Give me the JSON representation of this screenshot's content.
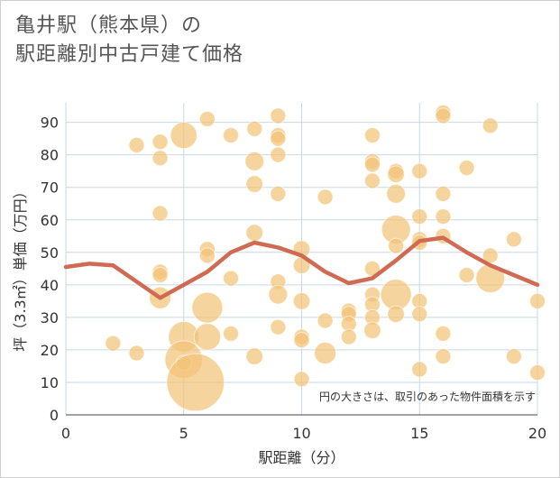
{
  "header": {
    "line1": "亀井駅（熊本県）の",
    "line2": "駅距離別中古戸建て価格"
  },
  "colors": {
    "bubble": "#f3c377",
    "line": "#d06a52",
    "grid": "#c9d7e6",
    "plot_bg": "#ffffff"
  },
  "chart_data": {
    "type": "scatter",
    "title": "亀井駅（熊本県）の駅距離別中古戸建て価格",
    "xlabel": "駅距離（分）",
    "ylabel": "坪（3.3㎡）単価（万円）",
    "xlim": [
      0,
      20
    ],
    "ylim": [
      0,
      96
    ],
    "xticks": [
      0,
      5,
      10,
      15,
      20
    ],
    "yticks": [
      0,
      10,
      20,
      30,
      40,
      50,
      60,
      70,
      80,
      90
    ],
    "annotation": "円の大きさは、取引のあった物件面積を示す",
    "points": [
      {
        "x": 2,
        "y": 22,
        "s": 1
      },
      {
        "x": 3,
        "y": 83,
        "s": 1
      },
      {
        "x": 3,
        "y": 19,
        "s": 1
      },
      {
        "x": 4,
        "y": 84,
        "s": 1
      },
      {
        "x": 4,
        "y": 79,
        "s": 1
      },
      {
        "x": 4,
        "y": 62,
        "s": 1
      },
      {
        "x": 4,
        "y": 44,
        "s": 1
      },
      {
        "x": 4,
        "y": 43,
        "s": 1
      },
      {
        "x": 4,
        "y": 36,
        "s": 2
      },
      {
        "x": 5,
        "y": 86,
        "s": 3
      },
      {
        "x": 5,
        "y": 24,
        "s": 4
      },
      {
        "x": 5,
        "y": 17,
        "s": 6
      },
      {
        "x": 5,
        "y": 16,
        "s": 1
      },
      {
        "x": 5.5,
        "y": 10,
        "s": 14
      },
      {
        "x": 6,
        "y": 91,
        "s": 1
      },
      {
        "x": 6,
        "y": 51,
        "s": 1
      },
      {
        "x": 6,
        "y": 49,
        "s": 1
      },
      {
        "x": 6,
        "y": 33,
        "s": 4
      },
      {
        "x": 6,
        "y": 24,
        "s": 3
      },
      {
        "x": 7,
        "y": 86,
        "s": 1
      },
      {
        "x": 7,
        "y": 42,
        "s": 1
      },
      {
        "x": 7,
        "y": 25,
        "s": 1
      },
      {
        "x": 8,
        "y": 88,
        "s": 1
      },
      {
        "x": 8,
        "y": 78,
        "s": 1.5
      },
      {
        "x": 8,
        "y": 71,
        "s": 1.2
      },
      {
        "x": 8,
        "y": 56,
        "s": 1.2
      },
      {
        "x": 8,
        "y": 18,
        "s": 1.2
      },
      {
        "x": 9,
        "y": 92,
        "s": 1
      },
      {
        "x": 9,
        "y": 86,
        "s": 1
      },
      {
        "x": 9,
        "y": 85,
        "s": 1
      },
      {
        "x": 9,
        "y": 80,
        "s": 1
      },
      {
        "x": 9,
        "y": 68,
        "s": 1
      },
      {
        "x": 9,
        "y": 41,
        "s": 1
      },
      {
        "x": 9,
        "y": 37,
        "s": 1.5
      },
      {
        "x": 9,
        "y": 27,
        "s": 1
      },
      {
        "x": 10,
        "y": 51,
        "s": 1.2
      },
      {
        "x": 10,
        "y": 46,
        "s": 1.2
      },
      {
        "x": 10,
        "y": 35,
        "s": 1.2
      },
      {
        "x": 10,
        "y": 24,
        "s": 1
      },
      {
        "x": 10,
        "y": 23,
        "s": 1
      },
      {
        "x": 10,
        "y": 11,
        "s": 1
      },
      {
        "x": 11,
        "y": 67,
        "s": 1
      },
      {
        "x": 11,
        "y": 29,
        "s": 1
      },
      {
        "x": 11,
        "y": 19,
        "s": 2
      },
      {
        "x": 12,
        "y": 32,
        "s": 1
      },
      {
        "x": 12,
        "y": 31,
        "s": 1
      },
      {
        "x": 12,
        "y": 28,
        "s": 1
      },
      {
        "x": 12,
        "y": 24,
        "s": 1
      },
      {
        "x": 13,
        "y": 86,
        "s": 1
      },
      {
        "x": 13,
        "y": 78,
        "s": 1
      },
      {
        "x": 13,
        "y": 77,
        "s": 1
      },
      {
        "x": 13,
        "y": 72,
        "s": 1
      },
      {
        "x": 13,
        "y": 45,
        "s": 1
      },
      {
        "x": 13,
        "y": 37,
        "s": 1
      },
      {
        "x": 13,
        "y": 34,
        "s": 1
      },
      {
        "x": 13,
        "y": 30,
        "s": 1
      },
      {
        "x": 13,
        "y": 26,
        "s": 1.2
      },
      {
        "x": 14,
        "y": 75,
        "s": 1
      },
      {
        "x": 14,
        "y": 74,
        "s": 1.2
      },
      {
        "x": 14,
        "y": 68,
        "s": 1.5
      },
      {
        "x": 14,
        "y": 57,
        "s": 3.5
      },
      {
        "x": 14,
        "y": 52,
        "s": 1
      },
      {
        "x": 14,
        "y": 37,
        "s": 4
      },
      {
        "x": 14,
        "y": 31,
        "s": 1.2
      },
      {
        "x": 15,
        "y": 75,
        "s": 1
      },
      {
        "x": 15,
        "y": 61,
        "s": 1
      },
      {
        "x": 15,
        "y": 54,
        "s": 1
      },
      {
        "x": 15,
        "y": 53,
        "s": 1
      },
      {
        "x": 15,
        "y": 35,
        "s": 1
      },
      {
        "x": 15,
        "y": 31,
        "s": 1
      },
      {
        "x": 15,
        "y": 14,
        "s": 1
      },
      {
        "x": 16,
        "y": 93,
        "s": 1
      },
      {
        "x": 16,
        "y": 92,
        "s": 1
      },
      {
        "x": 16,
        "y": 68,
        "s": 1
      },
      {
        "x": 16,
        "y": 61,
        "s": 1
      },
      {
        "x": 16,
        "y": 55,
        "s": 1
      },
      {
        "x": 16,
        "y": 25,
        "s": 1
      },
      {
        "x": 16,
        "y": 18,
        "s": 1
      },
      {
        "x": 17,
        "y": 76,
        "s": 1
      },
      {
        "x": 17,
        "y": 43,
        "s": 1
      },
      {
        "x": 18,
        "y": 89,
        "s": 1
      },
      {
        "x": 18,
        "y": 49,
        "s": 1
      },
      {
        "x": 18,
        "y": 42,
        "s": 3.5
      },
      {
        "x": 19,
        "y": 54,
        "s": 1
      },
      {
        "x": 19,
        "y": 18,
        "s": 1
      },
      {
        "x": 20,
        "y": 35,
        "s": 1
      },
      {
        "x": 20,
        "y": 13,
        "s": 1
      }
    ],
    "trend": {
      "x": [
        0,
        1,
        2,
        3,
        4,
        5,
        6,
        7,
        8,
        9,
        10,
        11,
        12,
        13,
        14,
        15,
        16,
        17,
        18,
        19,
        20
      ],
      "y": [
        45.5,
        46.5,
        46,
        41,
        36,
        40,
        44,
        50,
        53,
        51.5,
        49,
        44,
        40.5,
        42,
        47.5,
        53.5,
        54.5,
        50,
        46,
        43,
        40
      ]
    }
  }
}
